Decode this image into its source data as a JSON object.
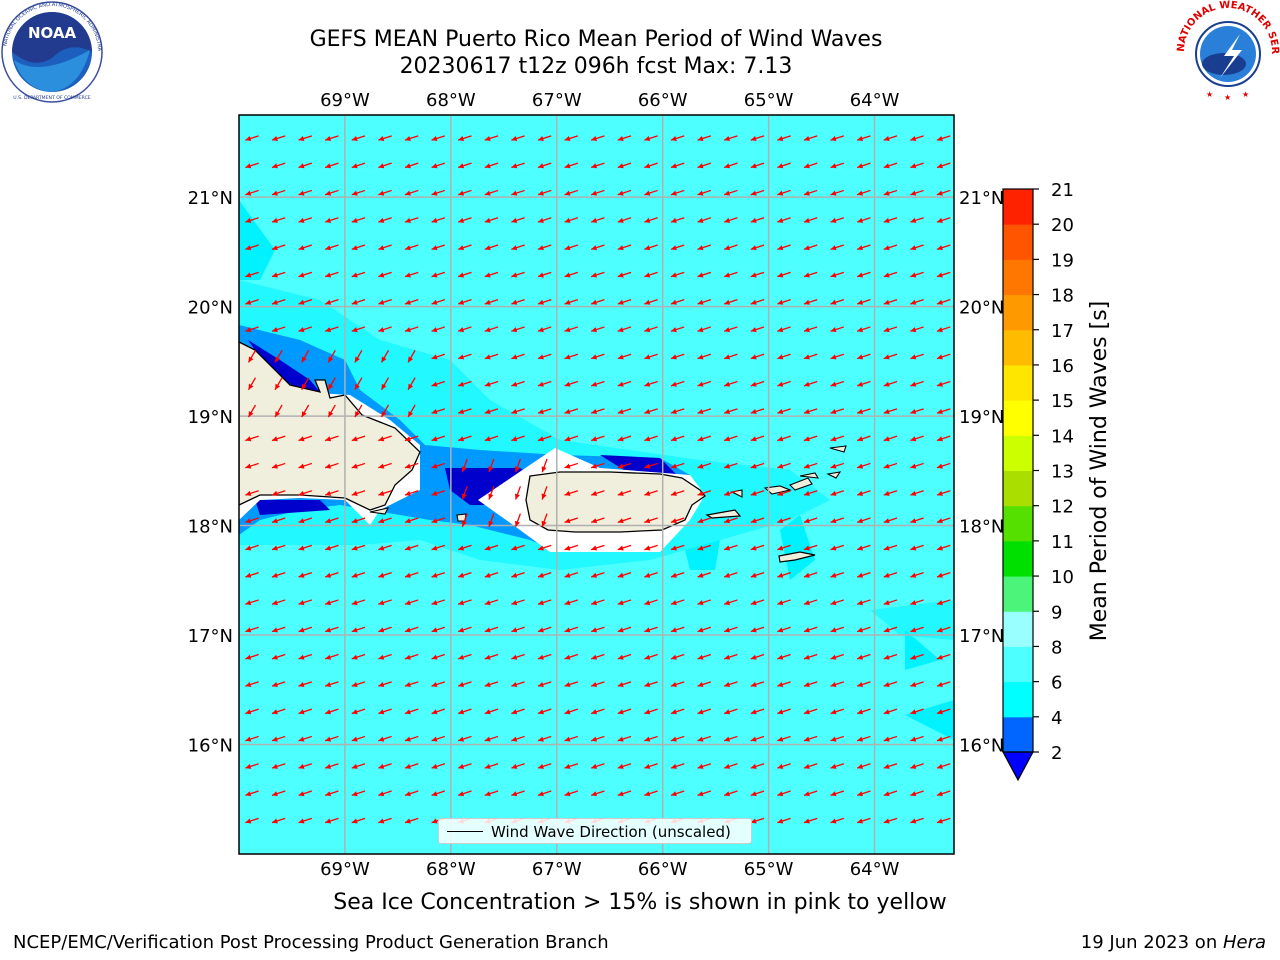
{
  "title_line1": "GEFS MEAN Puerto Rico Mean Period of Wind Waves",
  "title_line2": "20230617 t12z 096h fcst   Max: 7.13",
  "logos": {
    "left": "noaa-logo",
    "right": "nws-logo",
    "noaa_text": "NOAA",
    "noaa_ring_text": "NATIONAL OCEANIC AND ATMOSPHERIC ADMINISTRATION",
    "noaa_ring_bottom": "U.S. DEPARTMENT OF COMMERCE",
    "nws_ring_text": "NATIONAL WEATHER SERVICE"
  },
  "map": {
    "lon_ticks": [
      "69°W",
      "68°W",
      "67°W",
      "66°W",
      "65°W",
      "64°W"
    ],
    "lat_ticks": [
      "21°N",
      "20°N",
      "19°N",
      "18°N",
      "17°N",
      "16°N"
    ],
    "lon_values": [
      -69,
      -68,
      -67,
      -66,
      -65,
      -64
    ],
    "lat_values": [
      21,
      20,
      19,
      18,
      17,
      16
    ],
    "extent": {
      "lon_min": -70.0,
      "lon_max": -63.25,
      "lat_min": 15.0,
      "lat_max": 21.75
    },
    "wind_direction_deg_from": "ESE",
    "colors": {
      "ocean_main": "#4dffff",
      "ocean_light": "#33ffff",
      "shelf_mid": "#0099ff",
      "shelf_dark": "#0000cc",
      "land": "#f0eedc",
      "arrow": "#ff0000",
      "grid": "#b0b0b0"
    }
  },
  "legend": {
    "label": "Wind Wave Direction (unscaled)"
  },
  "colorbar": {
    "label": "Mean Period of Wind Waves [s]",
    "levels": [
      2,
      4,
      6,
      8,
      9,
      10,
      11,
      12,
      13,
      14,
      15,
      16,
      17,
      18,
      19,
      20,
      21
    ],
    "tick_labels": [
      "21",
      "20",
      "19",
      "18",
      "17",
      "16",
      "15",
      "14",
      "13",
      "12",
      "11",
      "10",
      "9",
      "8",
      "6",
      "4",
      "2"
    ],
    "colors": [
      "#0066ff",
      "#00ffff",
      "#4dffff",
      "#99ffff",
      "#4cf57a",
      "#00e000",
      "#55e000",
      "#aadd00",
      "#ccff00",
      "#ffff00",
      "#ffe600",
      "#ffbb00",
      "#ff9900",
      "#ff7700",
      "#ff5500",
      "#ff2200"
    ],
    "under_color": "#0000ff"
  },
  "note": "Sea Ice Concentration > 15% is shown in pink to yellow",
  "credit": "NCEP/EMC/Verification Post Processing Product Generation Branch",
  "datestamp_prefix": "19 Jun 2023 on ",
  "datestamp_machine": "Hera"
}
